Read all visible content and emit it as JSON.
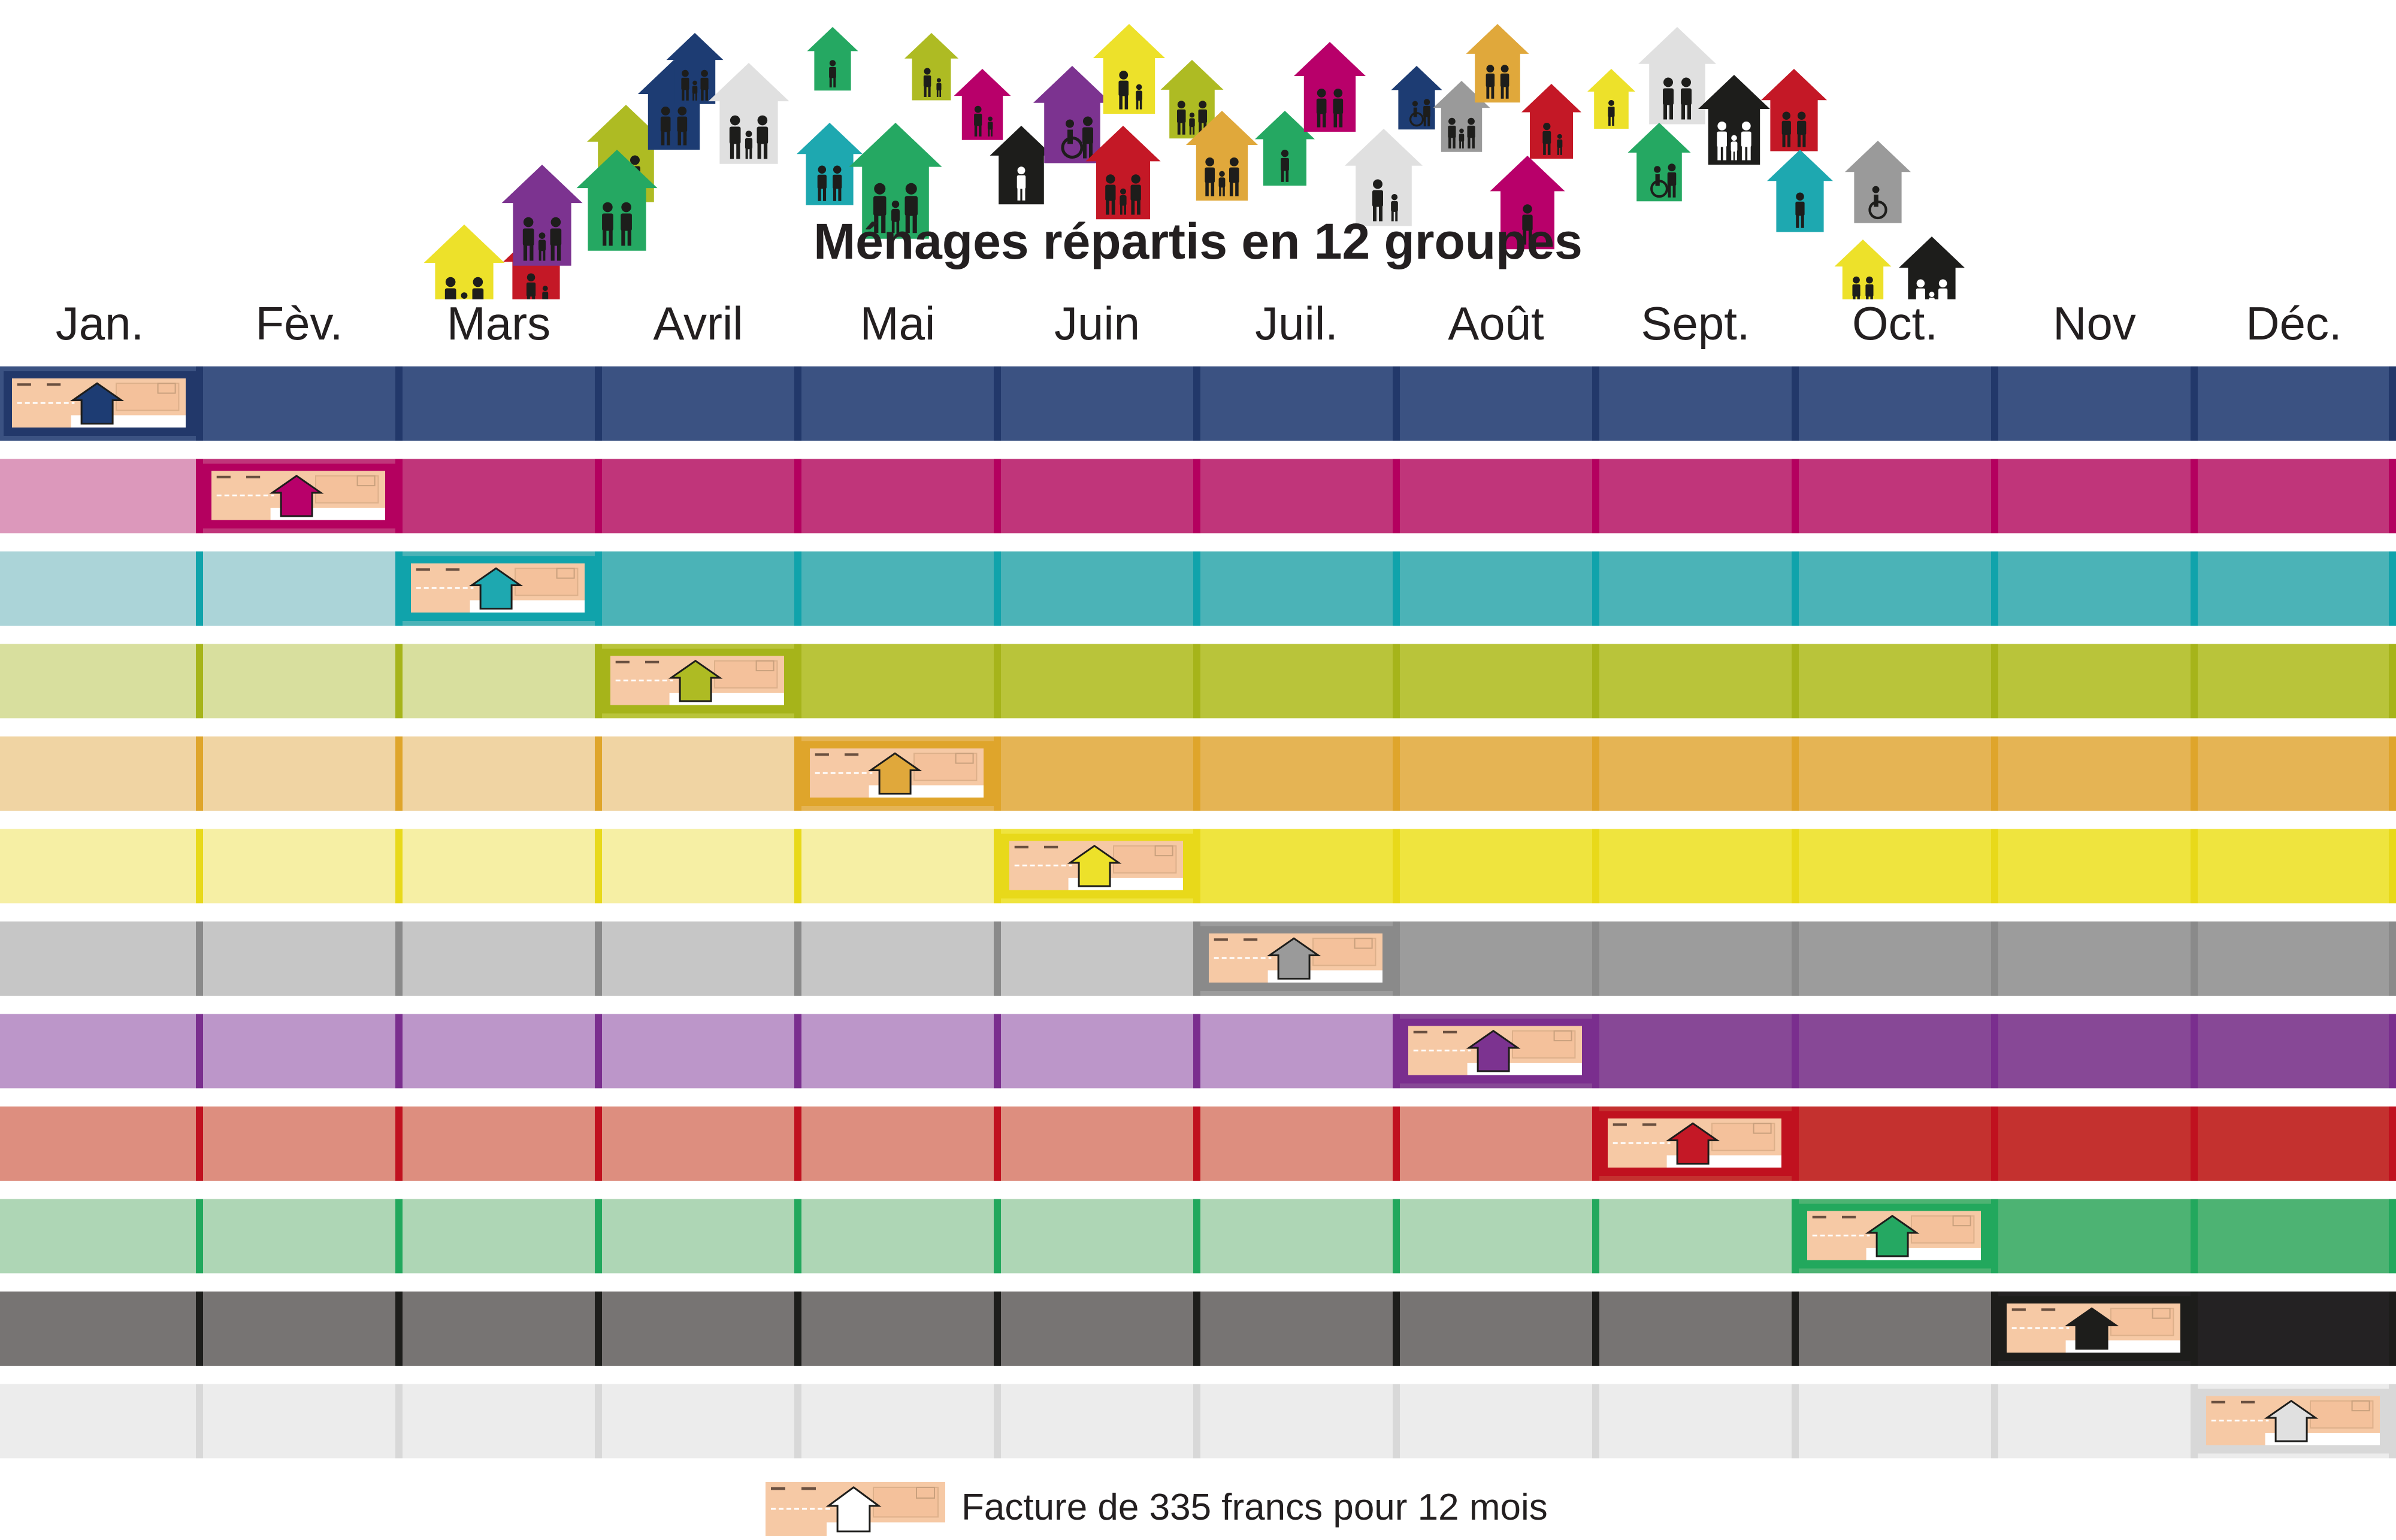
{
  "title": "Ménages répartis en 12 groupes",
  "months": [
    "Jan.",
    "Fèv.",
    "Mars",
    "Avril",
    "Mai",
    "Juin",
    "Juil.",
    "Août",
    "Sept.",
    "Oct.",
    "Nov",
    "Déc."
  ],
  "legend": {
    "text": "Facture de 335 francs pour 12 mois",
    "icon": "invoice-house-icon"
  },
  "groups": [
    {
      "billing_month": 1,
      "light": "#3b5282",
      "dark": "#3b5282",
      "divider": "#22386a",
      "house": "#1d3c73"
    },
    {
      "billing_month": 2,
      "light": "#dc98bb",
      "dark": "#c0357a",
      "divider": "#b4005f",
      "house": "#b8006a"
    },
    {
      "billing_month": 3,
      "light": "#abd4d8",
      "dark": "#4bb3b7",
      "divider": "#10a3ab",
      "house": "#1ea8b0"
    },
    {
      "billing_month": 4,
      "light": "#d8df9e",
      "dark": "#b9c43a",
      "divider": "#a6b41a",
      "house": "#aebb23"
    },
    {
      "billing_month": 5,
      "light": "#f0d4a3",
      "dark": "#e5b454",
      "divider": "#dfa52b",
      "house": "#e0a83b"
    },
    {
      "billing_month": 6,
      "light": "#f6efa4",
      "dark": "#efe43e",
      "divider": "#e8d91a",
      "house": "#ede12a"
    },
    {
      "billing_month": 7,
      "light": "#c6c6c6",
      "dark": "#9c9c9c",
      "divider": "#8a8a8a",
      "house": "#9a9a9a"
    },
    {
      "billing_month": 8,
      "light": "#bc96c9",
      "dark": "#874896",
      "divider": "#7a2e8e",
      "house": "#7c3390"
    },
    {
      "billing_month": 9,
      "light": "#dd8e7f",
      "dark": "#c4312f",
      "divider": "#c0111f",
      "house": "#c41826"
    },
    {
      "billing_month": 10,
      "light": "#aed6b5",
      "dark": "#4db373",
      "divider": "#22a85d",
      "house": "#25a862"
    },
    {
      "billing_month": 11,
      "light": "#777473",
      "dark": "#242223",
      "divider": "#1d1d1b",
      "house": "#1d1d1b"
    },
    {
      "billing_month": 12,
      "light": "#ececec",
      "dark": "#ececec",
      "divider": "#d8d8d8",
      "house": "#e0e0e0"
    }
  ],
  "household_houses": [
    {
      "color": "#ede12a",
      "icon": "family-elderly-couple-icon"
    },
    {
      "color": "#c41826",
      "icon": "parent-child-icon"
    },
    {
      "color": "#7c3390",
      "icon": "family-wheelchair-icon"
    },
    {
      "color": "#aebb23",
      "icon": "couple-icon"
    },
    {
      "color": "#25a862",
      "icon": "couple-icon"
    },
    {
      "color": "#1d3c73",
      "icon": "couple-icon"
    },
    {
      "color": "#1d3c73",
      "icon": "family-wheelchair-icon"
    },
    {
      "color": "#e0e0e0",
      "icon": "family-icon"
    },
    {
      "color": "#25a862",
      "icon": "person-icon"
    },
    {
      "color": "#1ea8b0",
      "icon": "couple-elderly-icon"
    },
    {
      "color": "#25a862",
      "icon": "family-icon"
    },
    {
      "color": "#aebb23",
      "icon": "parent-child-icon"
    },
    {
      "color": "#b8006a",
      "icon": "parent-child-icon"
    },
    {
      "color": "#1d1d1b",
      "icon": "person-icon"
    },
    {
      "color": "#7c3390",
      "icon": "elderly-wheelchair-icon"
    },
    {
      "color": "#ede12a",
      "icon": "parent-child-icon"
    },
    {
      "color": "#aebb23",
      "icon": "family-icon"
    },
    {
      "color": "#c41826",
      "icon": "family-wheelchair-icon"
    },
    {
      "color": "#e0a83b",
      "icon": "family-icon"
    },
    {
      "color": "#25a862",
      "icon": "person-icon"
    },
    {
      "color": "#b8006a",
      "icon": "couple-icon"
    },
    {
      "color": "#1d3c73",
      "icon": "wheelchair-person-icon"
    },
    {
      "color": "#e0e0e0",
      "icon": "parent-child-icon"
    },
    {
      "color": "#9a9a9a",
      "icon": "family-icon"
    },
    {
      "color": "#e0a83b",
      "icon": "couple-icon"
    },
    {
      "color": "#b8006a",
      "icon": "person-icon"
    },
    {
      "color": "#c41826",
      "icon": "parent-child-icon"
    },
    {
      "color": "#ede12a",
      "icon": "person-icon"
    },
    {
      "color": "#e0e0e0",
      "icon": "couple-icon"
    },
    {
      "color": "#25a862",
      "icon": "wheelchair-person-icon"
    },
    {
      "color": "#1d1d1b",
      "icon": "family-icon"
    },
    {
      "color": "#c41826",
      "icon": "couple-icon"
    },
    {
      "color": "#1ea8b0",
      "icon": "person-icon"
    },
    {
      "color": "#9a9a9a",
      "icon": "wheelchair-icon"
    },
    {
      "color": "#ede12a",
      "icon": "couple-icon"
    },
    {
      "color": "#1d1d1b",
      "icon": "family-icon"
    }
  ]
}
